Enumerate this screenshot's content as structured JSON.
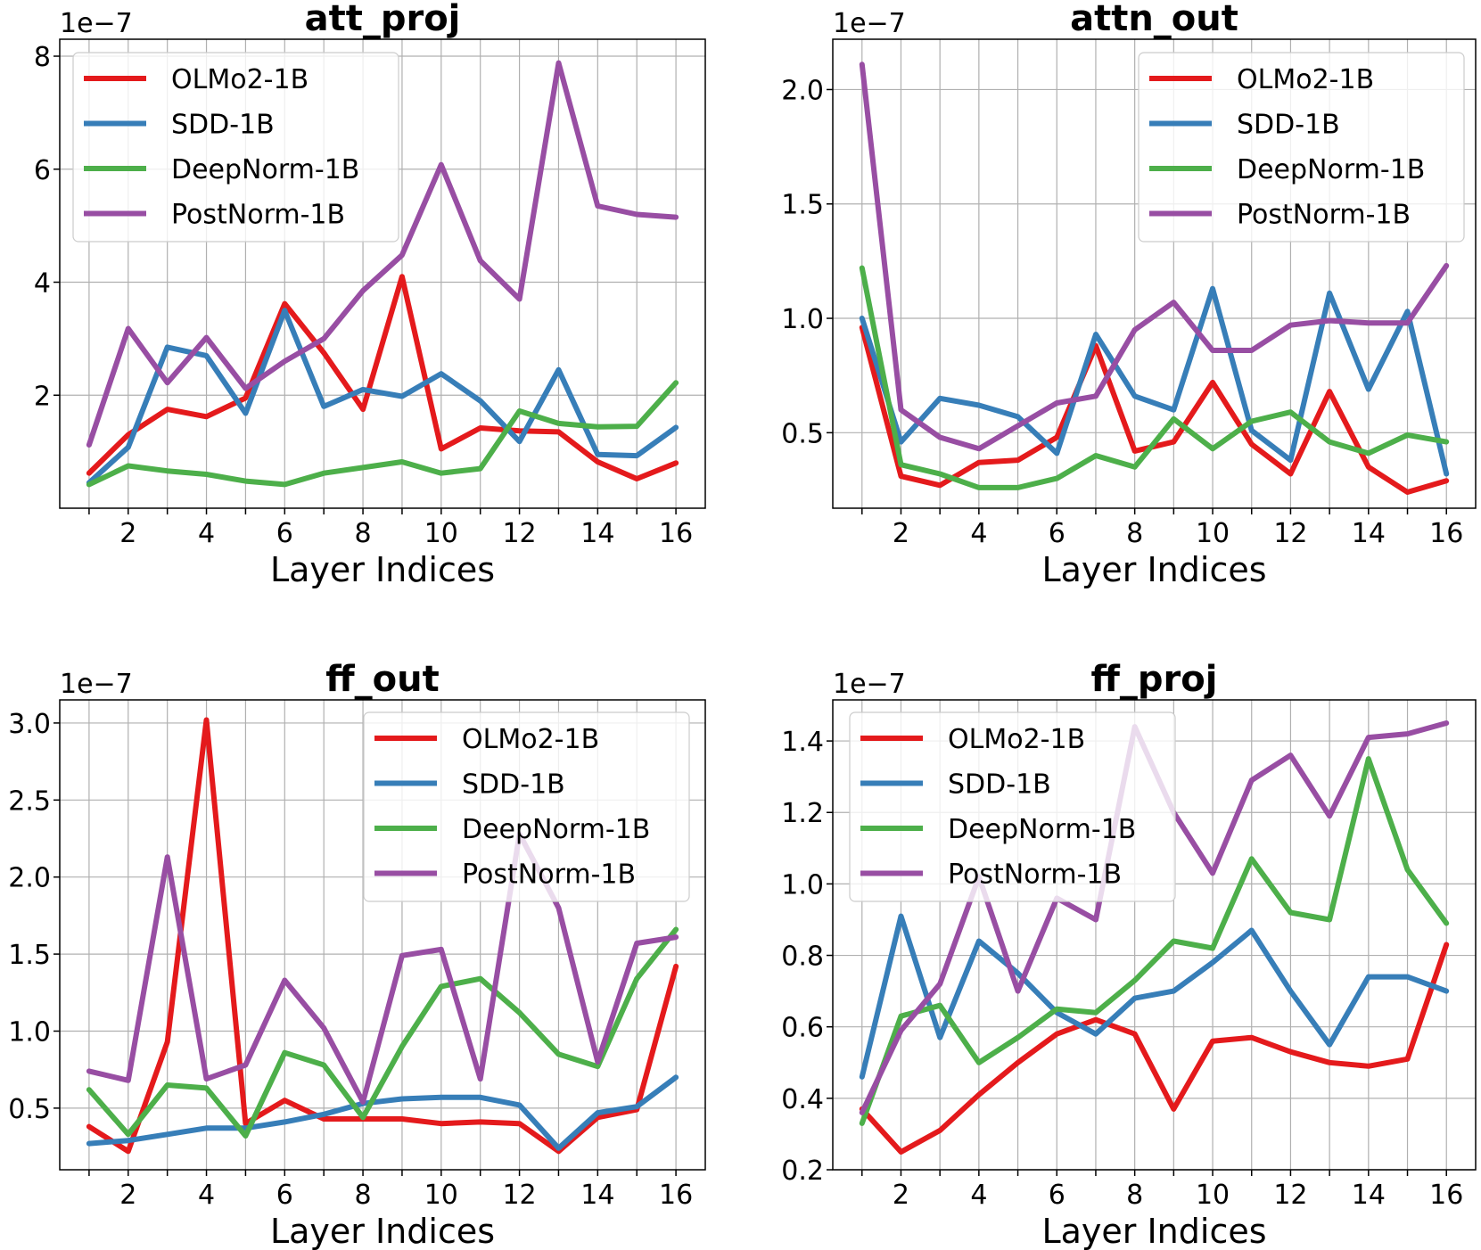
{
  "chart_data": [
    {
      "type": "line",
      "title": "att_proj",
      "xlabel": "Layer Indices",
      "ylabel": "",
      "offset_text": "1e−7",
      "x": [
        1,
        2,
        3,
        4,
        5,
        6,
        7,
        8,
        9,
        10,
        11,
        12,
        13,
        14,
        15,
        16
      ],
      "xticks": [
        "2",
        "4",
        "6",
        "8",
        "10",
        "12",
        "14",
        "16"
      ],
      "yticks": [
        "2",
        "4",
        "6",
        "8"
      ],
      "ylim": [
        0.0,
        8.3
      ],
      "legend_position": "upper left",
      "grid": true,
      "series": [
        {
          "name": "OLMo2-1B",
          "color": "#e41a1c",
          "values": [
            0.62,
            1.3,
            1.75,
            1.62,
            1.95,
            3.62,
            2.75,
            1.75,
            4.1,
            1.05,
            1.42,
            1.37,
            1.35,
            0.82,
            0.52,
            0.8
          ]
        },
        {
          "name": "SDD-1B",
          "color": "#377eb8",
          "values": [
            0.45,
            1.08,
            2.85,
            2.7,
            1.68,
            3.5,
            1.8,
            2.1,
            1.98,
            2.38,
            1.9,
            1.18,
            2.45,
            0.95,
            0.93,
            1.43
          ]
        },
        {
          "name": "DeepNorm-1B",
          "color": "#4daf4a",
          "values": [
            0.42,
            0.75,
            0.66,
            0.6,
            0.48,
            0.42,
            0.62,
            0.72,
            0.82,
            0.62,
            0.7,
            1.72,
            1.5,
            1.44,
            1.45,
            2.22
          ]
        },
        {
          "name": "PostNorm-1B",
          "color": "#984ea3",
          "values": [
            1.12,
            3.18,
            2.22,
            3.02,
            2.12,
            2.6,
            3.0,
            3.85,
            4.48,
            6.08,
            4.38,
            3.7,
            7.88,
            5.35,
            5.2,
            5.15
          ]
        }
      ]
    },
    {
      "type": "line",
      "title": "attn_out",
      "xlabel": "Layer Indices",
      "ylabel": "",
      "offset_text": "1e−7",
      "x": [
        1,
        2,
        3,
        4,
        5,
        6,
        7,
        8,
        9,
        10,
        11,
        12,
        13,
        14,
        15,
        16
      ],
      "xticks": [
        "2",
        "4",
        "6",
        "8",
        "10",
        "12",
        "14",
        "16"
      ],
      "yticks": [
        "0.5",
        "1.0",
        "1.5",
        "2.0"
      ],
      "ylim": [
        0.17,
        2.22
      ],
      "legend_position": "upper right",
      "grid": true,
      "series": [
        {
          "name": "OLMo2-1B",
          "color": "#e41a1c",
          "values": [
            0.96,
            0.31,
            0.27,
            0.37,
            0.38,
            0.48,
            0.88,
            0.42,
            0.46,
            0.72,
            0.45,
            0.32,
            0.68,
            0.35,
            0.24,
            0.29
          ]
        },
        {
          "name": "SDD-1B",
          "color": "#377eb8",
          "values": [
            1.0,
            0.46,
            0.65,
            0.62,
            0.57,
            0.41,
            0.93,
            0.66,
            0.6,
            1.13,
            0.51,
            0.38,
            1.11,
            0.69,
            1.03,
            0.32
          ]
        },
        {
          "name": "DeepNorm-1B",
          "color": "#4daf4a",
          "values": [
            1.22,
            0.36,
            0.32,
            0.26,
            0.26,
            0.3,
            0.4,
            0.35,
            0.56,
            0.43,
            0.55,
            0.59,
            0.46,
            0.41,
            0.49,
            0.46
          ]
        },
        {
          "name": "PostNorm-1B",
          "color": "#984ea3",
          "values": [
            2.11,
            0.6,
            0.48,
            0.43,
            0.53,
            0.63,
            0.66,
            0.95,
            1.07,
            0.86,
            0.86,
            0.97,
            0.99,
            0.98,
            0.98,
            1.23
          ]
        }
      ]
    },
    {
      "type": "line",
      "title": "ff_out",
      "xlabel": "Layer Indices",
      "ylabel": "",
      "offset_text": "1e−7",
      "x": [
        1,
        2,
        3,
        4,
        5,
        6,
        7,
        8,
        9,
        10,
        11,
        12,
        13,
        14,
        15,
        16
      ],
      "xticks": [
        "2",
        "4",
        "6",
        "8",
        "10",
        "12",
        "14",
        "16"
      ],
      "yticks": [
        "0.5",
        "1.0",
        "1.5",
        "2.0",
        "2.5",
        "3.0"
      ],
      "ylim": [
        0.1,
        3.15
      ],
      "legend_position": "upper right",
      "grid": true,
      "series": [
        {
          "name": "OLMo2-1B",
          "color": "#e41a1c",
          "values": [
            0.38,
            0.22,
            0.93,
            3.02,
            0.4,
            0.55,
            0.43,
            0.43,
            0.43,
            0.4,
            0.41,
            0.4,
            0.22,
            0.44,
            0.49,
            1.42
          ]
        },
        {
          "name": "SDD-1B",
          "color": "#377eb8",
          "values": [
            0.27,
            0.29,
            0.33,
            0.37,
            0.37,
            0.41,
            0.46,
            0.53,
            0.56,
            0.57,
            0.57,
            0.52,
            0.24,
            0.47,
            0.51,
            0.7
          ]
        },
        {
          "name": "DeepNorm-1B",
          "color": "#4daf4a",
          "values": [
            0.62,
            0.33,
            0.65,
            0.63,
            0.32,
            0.86,
            0.78,
            0.44,
            0.9,
            1.29,
            1.34,
            1.12,
            0.85,
            0.77,
            1.34,
            1.66
          ]
        },
        {
          "name": "PostNorm-1B",
          "color": "#984ea3",
          "values": [
            0.74,
            0.68,
            2.13,
            0.69,
            0.78,
            1.33,
            1.02,
            0.54,
            1.49,
            1.53,
            0.69,
            2.28,
            1.8,
            0.8,
            1.57,
            1.61
          ]
        }
      ]
    },
    {
      "type": "line",
      "title": "ff_proj",
      "xlabel": "Layer Indices",
      "ylabel": "",
      "offset_text": "1e−7",
      "x": [
        1,
        2,
        3,
        4,
        5,
        6,
        7,
        8,
        9,
        10,
        11,
        12,
        13,
        14,
        15,
        16
      ],
      "xticks": [
        "2",
        "4",
        "6",
        "8",
        "10",
        "12",
        "14",
        "16"
      ],
      "yticks": [
        "0.2",
        "0.4",
        "0.6",
        "0.8",
        "1.0",
        "1.2",
        "1.4"
      ],
      "ylim": [
        0.2,
        1.515
      ],
      "legend_position": "upper left",
      "grid": true,
      "series": [
        {
          "name": "OLMo2-1B",
          "color": "#e41a1c",
          "values": [
            0.37,
            0.25,
            0.31,
            0.41,
            0.5,
            0.58,
            0.62,
            0.58,
            0.37,
            0.56,
            0.57,
            0.53,
            0.5,
            0.49,
            0.51,
            0.83
          ]
        },
        {
          "name": "SDD-1B",
          "color": "#377eb8",
          "values": [
            0.46,
            0.91,
            0.57,
            0.84,
            0.75,
            0.64,
            0.58,
            0.68,
            0.7,
            0.78,
            0.87,
            0.7,
            0.55,
            0.74,
            0.74,
            0.7
          ]
        },
        {
          "name": "DeepNorm-1B",
          "color": "#4daf4a",
          "values": [
            0.33,
            0.63,
            0.66,
            0.5,
            0.57,
            0.65,
            0.64,
            0.73,
            0.84,
            0.82,
            1.07,
            0.92,
            0.9,
            1.35,
            1.04,
            0.89
          ]
        },
        {
          "name": "PostNorm-1B",
          "color": "#984ea3",
          "values": [
            0.36,
            0.59,
            0.72,
            1.02,
            0.7,
            0.96,
            0.9,
            1.44,
            1.2,
            1.03,
            1.29,
            1.36,
            1.19,
            1.41,
            1.42,
            1.45
          ]
        }
      ]
    }
  ]
}
